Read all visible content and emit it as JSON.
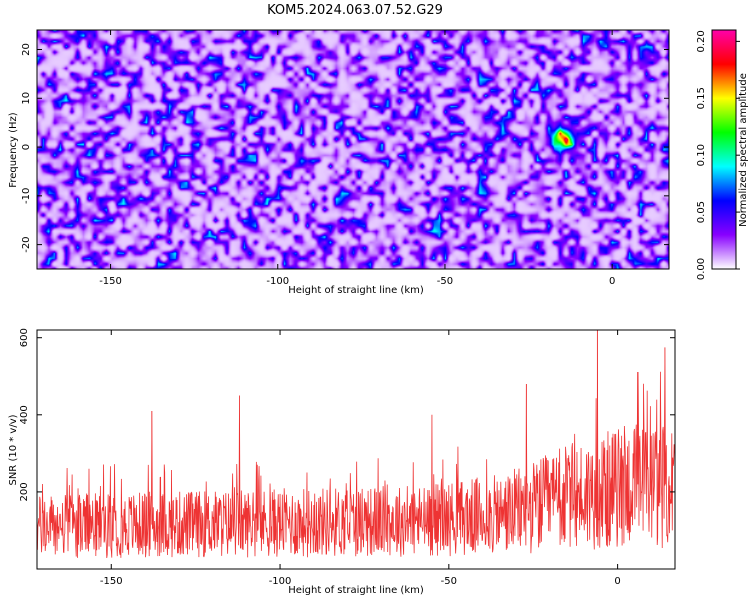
{
  "title": "KOM5.2024.063.07.52.G29",
  "chart_data": [
    {
      "type": "heatmap",
      "xlabel": "Height of straight line (km)",
      "ylabel": "Frequency (Hz)",
      "xlim": [
        -172,
        17
      ],
      "ylim": [
        -25,
        24
      ],
      "x_ticks": [
        -150,
        -100,
        -50,
        0
      ],
      "y_ticks": [
        -20,
        -10,
        0,
        10,
        20
      ],
      "colorbar": {
        "label": "Normalized spectral amplitude",
        "range": [
          0.0,
          0.21
        ],
        "ticks": [
          "0.00",
          "0.05",
          "0.10",
          "0.15",
          "0.20"
        ],
        "colors": [
          "#ffffff",
          "#8800ff",
          "#0000ff",
          "#00ffff",
          "#00ff00",
          "#ffff00",
          "#ff0000",
          "#ff00aa"
        ]
      },
      "background_level": 0.03,
      "peak": {
        "x": -15,
        "y": 2,
        "value": 0.19
      }
    },
    {
      "type": "line",
      "xlabel": "Height of straight line (km)",
      "ylabel": "SNR (10 * v/v)",
      "xlim": [
        -172,
        17
      ],
      "ylim": [
        0,
        620
      ],
      "x_ticks": [
        -150,
        -100,
        -50,
        0
      ],
      "y_ticks": [
        200,
        400,
        600
      ],
      "series": [
        {
          "color": "#ee3333",
          "baseline_x": [
            -172,
            -140,
            -100,
            -60,
            -35,
            -25,
            -15,
            -5,
            5,
            17
          ],
          "baseline_y": [
            110,
            115,
            120,
            125,
            140,
            160,
            185,
            200,
            220,
            215
          ],
          "notable_spikes": [
            {
              "x": -138,
              "y": 410
            },
            {
              "x": -112,
              "y": 450
            },
            {
              "x": -55,
              "y": 400
            },
            {
              "x": -27,
              "y": 480
            },
            {
              "x": -6,
              "y": 620
            },
            {
              "x": 6,
              "y": 510
            },
            {
              "x": 14,
              "y": 575
            }
          ]
        }
      ]
    }
  ]
}
